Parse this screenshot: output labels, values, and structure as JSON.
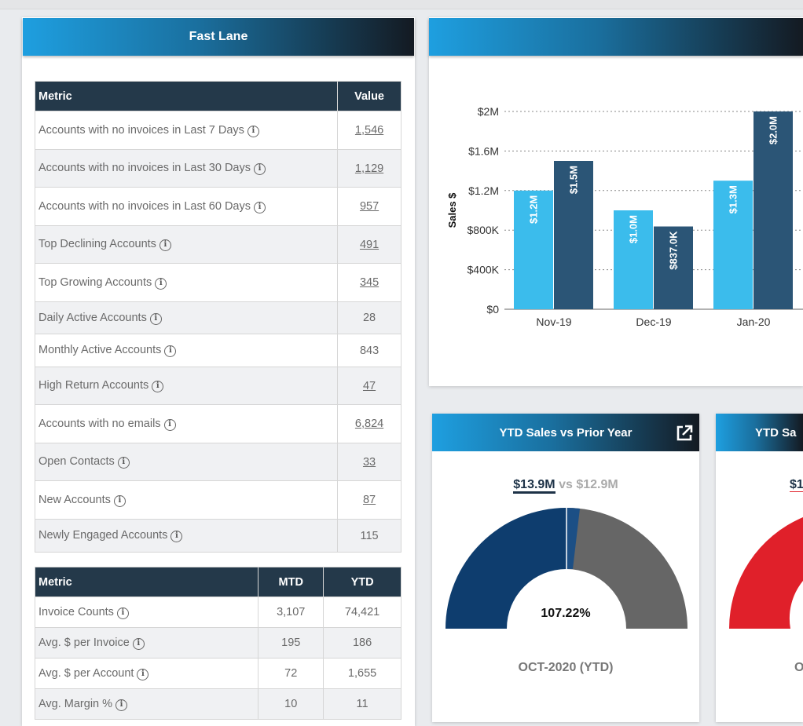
{
  "fast_lane": {
    "title": "Fast Lane",
    "table1": {
      "headers": [
        "Metric",
        "Value"
      ],
      "rows": [
        {
          "metric": "Accounts with no invoices in Last 7 Days",
          "value": "1,546",
          "link": true
        },
        {
          "metric": "Accounts with no invoices in Last 30 Days",
          "value": "1,129",
          "link": true
        },
        {
          "metric": "Accounts with no invoices in Last 60 Days",
          "value": "957",
          "link": true
        },
        {
          "metric": "Top Declining Accounts",
          "value": "491",
          "link": true
        },
        {
          "metric": "Top Growing Accounts",
          "value": "345",
          "link": true
        },
        {
          "metric": "Daily Active Accounts",
          "value": "28",
          "link": false
        },
        {
          "metric": "Monthly Active Accounts",
          "value": "843",
          "link": false
        },
        {
          "metric": "High Return Accounts",
          "value": "47",
          "link": true
        },
        {
          "metric": "Accounts with no emails",
          "value": "6,824",
          "link": true
        },
        {
          "metric": "Open Contacts",
          "value": "33",
          "link": true
        },
        {
          "metric": "New Accounts",
          "value": "87",
          "link": true
        },
        {
          "metric": "Newly Engaged Accounts",
          "value": "115",
          "link": false
        }
      ]
    },
    "table2": {
      "headers": [
        "Metric",
        "MTD",
        "YTD"
      ],
      "rows": [
        {
          "metric": "Invoice Counts",
          "mtd": "3,107",
          "ytd": "74,421"
        },
        {
          "metric": "Avg. $ per Invoice",
          "mtd": "195",
          "ytd": "186"
        },
        {
          "metric": "Avg. $ per Account",
          "mtd": "72",
          "ytd": "1,655"
        },
        {
          "metric": "Avg. Margin %",
          "mtd": "10",
          "ytd": "11"
        }
      ]
    }
  },
  "chart_data": {
    "type": "bar",
    "categories": [
      "Nov-19",
      "Dec-19",
      "Jan-20"
    ],
    "series": [
      {
        "values": [
          1.2,
          1.0,
          1.3
        ],
        "labels": [
          "$1.2M",
          "$1.0M",
          "$1.3M"
        ],
        "color": "#3bbcec"
      },
      {
        "values": [
          1.5,
          0.837,
          2.0
        ],
        "labels": [
          "$1.5M",
          "$837.0K",
          "$2.0M"
        ],
        "color": "#2b5576"
      }
    ],
    "ylabel": "Sales $",
    "yticks": [
      "$0",
      "$400K",
      "$800K",
      "$1.2M",
      "$1.6M",
      "$2M"
    ],
    "ylim": [
      0,
      2.0
    ],
    "grid": true
  },
  "ytd_card": {
    "title": "YTD Sales vs Prior Year",
    "current": "$13.9M",
    "vs": "vs",
    "prior": "$12.9M",
    "percent": "107.22%",
    "period": "OCT-2020 (YTD)",
    "colors": {
      "current": "#0e3d6e",
      "prior": "#666666",
      "divider": "#2a5f97"
    }
  },
  "second_card": {
    "title_partial": "YTD Sa",
    "current_partial": "$1",
    "period_partial": "O",
    "color": "#e0202a"
  }
}
